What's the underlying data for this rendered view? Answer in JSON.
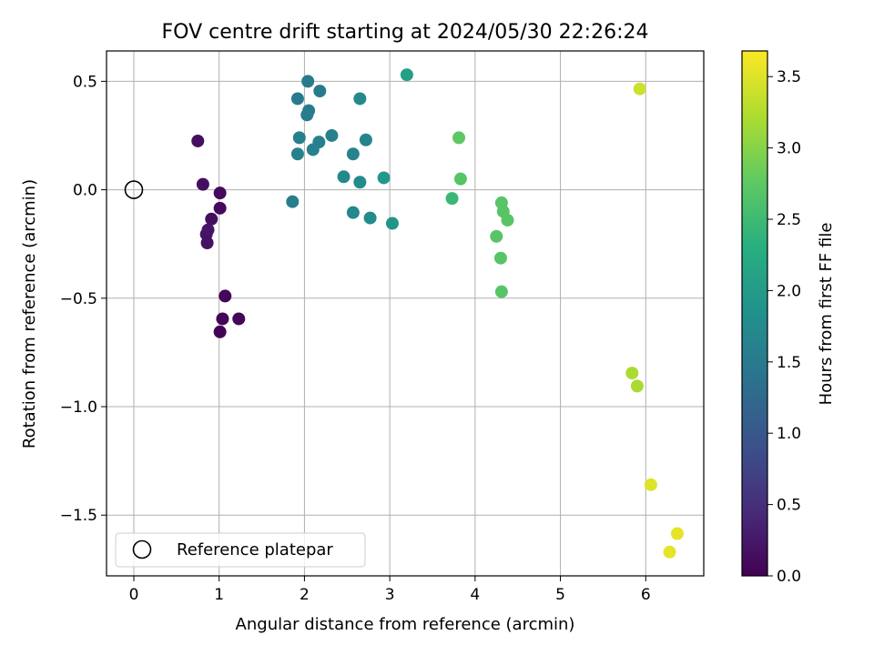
{
  "chart_data": {
    "type": "scatter",
    "title": "FOV centre drift starting at 2024/05/30 22:26:24",
    "xlabel": "Angular distance from reference (arcmin)",
    "ylabel": "Rotation from reference (arcmin)",
    "xlim": [
      -0.32,
      6.68
    ],
    "ylim": [
      -1.78,
      0.64
    ],
    "xticks": [
      0,
      1,
      2,
      3,
      4,
      5,
      6
    ],
    "xtick_labels": [
      "0",
      "1",
      "2",
      "3",
      "4",
      "5",
      "6"
    ],
    "yticks": [
      0.5,
      0.0,
      -0.5,
      -1.0,
      -1.5
    ],
    "ytick_labels": [
      "0.5",
      "0.0",
      "−0.5",
      "−1.0",
      "−1.5"
    ],
    "grid": true,
    "colormap": "viridis",
    "colorbar": {
      "label": "Hours from first FF file",
      "range": [
        0,
        3.68
      ],
      "ticks": [
        0.0,
        0.5,
        1.0,
        1.5,
        2.0,
        2.5,
        3.0,
        3.5
      ],
      "tick_labels": [
        "0.0",
        "0.5",
        "1.0",
        "1.5",
        "2.0",
        "2.5",
        "3.0",
        "3.5"
      ]
    },
    "reference_point": {
      "x": 0,
      "y": 0
    },
    "legend": {
      "entries": [
        "Reference platepar"
      ],
      "placement": "lower-left"
    },
    "points": [
      {
        "x": 0.75,
        "y": 0.225,
        "c": 0.15
      },
      {
        "x": 0.81,
        "y": 0.025,
        "c": 0.15
      },
      {
        "x": 1.01,
        "y": -0.015,
        "c": 0.1
      },
      {
        "x": 1.01,
        "y": -0.085,
        "c": 0.1
      },
      {
        "x": 0.91,
        "y": -0.135,
        "c": 0.15
      },
      {
        "x": 0.87,
        "y": -0.185,
        "c": 0.2
      },
      {
        "x": 0.85,
        "y": -0.205,
        "c": 0.2
      },
      {
        "x": 0.86,
        "y": -0.245,
        "c": 0.18
      },
      {
        "x": 1.07,
        "y": -0.49,
        "c": 0.05
      },
      {
        "x": 1.04,
        "y": -0.595,
        "c": 0.05
      },
      {
        "x": 1.23,
        "y": -0.595,
        "c": 0.05
      },
      {
        "x": 1.01,
        "y": -0.655,
        "c": 0.02
      },
      {
        "x": 2.04,
        "y": 0.5,
        "c": 1.5
      },
      {
        "x": 2.18,
        "y": 0.455,
        "c": 1.5
      },
      {
        "x": 1.92,
        "y": 0.42,
        "c": 1.5
      },
      {
        "x": 2.65,
        "y": 0.42,
        "c": 1.7
      },
      {
        "x": 2.05,
        "y": 0.365,
        "c": 1.55
      },
      {
        "x": 2.03,
        "y": 0.345,
        "c": 1.55
      },
      {
        "x": 2.32,
        "y": 0.25,
        "c": 1.6
      },
      {
        "x": 1.94,
        "y": 0.24,
        "c": 1.6
      },
      {
        "x": 2.72,
        "y": 0.23,
        "c": 1.65
      },
      {
        "x": 2.17,
        "y": 0.22,
        "c": 1.6
      },
      {
        "x": 2.1,
        "y": 0.185,
        "c": 1.6
      },
      {
        "x": 1.92,
        "y": 0.165,
        "c": 1.6
      },
      {
        "x": 2.57,
        "y": 0.165,
        "c": 1.65
      },
      {
        "x": 2.46,
        "y": 0.06,
        "c": 1.7
      },
      {
        "x": 2.65,
        "y": 0.035,
        "c": 1.75
      },
      {
        "x": 2.93,
        "y": 0.055,
        "c": 1.95
      },
      {
        "x": 1.86,
        "y": -0.055,
        "c": 1.55
      },
      {
        "x": 2.57,
        "y": -0.105,
        "c": 1.7
      },
      {
        "x": 2.77,
        "y": -0.13,
        "c": 1.75
      },
      {
        "x": 3.03,
        "y": -0.155,
        "c": 1.9
      },
      {
        "x": 3.2,
        "y": 0.53,
        "c": 2.05
      },
      {
        "x": 3.81,
        "y": 0.24,
        "c": 2.75
      },
      {
        "x": 3.83,
        "y": 0.05,
        "c": 2.7
      },
      {
        "x": 3.73,
        "y": -0.04,
        "c": 2.45
      },
      {
        "x": 4.31,
        "y": -0.06,
        "c": 2.7
      },
      {
        "x": 4.33,
        "y": -0.1,
        "c": 2.7
      },
      {
        "x": 4.38,
        "y": -0.14,
        "c": 2.7
      },
      {
        "x": 4.25,
        "y": -0.215,
        "c": 2.7
      },
      {
        "x": 4.3,
        "y": -0.315,
        "c": 2.7
      },
      {
        "x": 4.31,
        "y": -0.47,
        "c": 2.7
      },
      {
        "x": 5.93,
        "y": 0.465,
        "c": 3.4
      },
      {
        "x": 5.84,
        "y": -0.845,
        "c": 3.2
      },
      {
        "x": 5.9,
        "y": -0.905,
        "c": 3.2
      },
      {
        "x": 6.06,
        "y": -1.36,
        "c": 3.5
      },
      {
        "x": 6.37,
        "y": -1.585,
        "c": 3.55
      },
      {
        "x": 6.28,
        "y": -1.67,
        "c": 3.55
      }
    ]
  }
}
